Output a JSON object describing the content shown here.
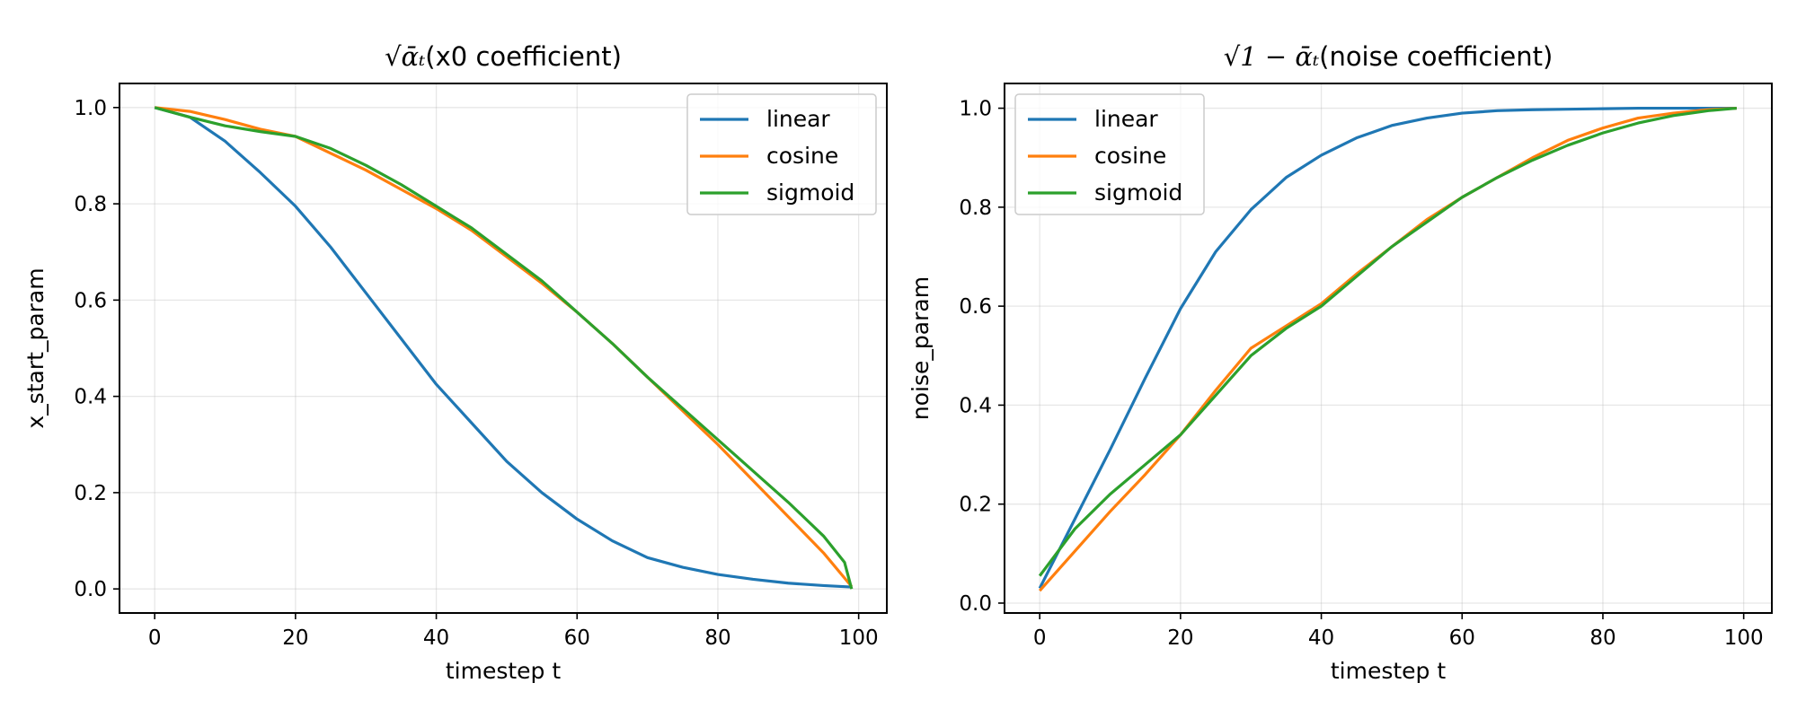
{
  "chart_data": [
    {
      "type": "line",
      "title_math": "√ᾱₜ",
      "title_text": "(x0 coefficient)",
      "xlabel": "timestep t",
      "ylabel": "x_start_param",
      "xlim": [
        -5,
        104
      ],
      "ylim": [
        -0.05,
        1.05
      ],
      "xticks": [
        0,
        20,
        40,
        60,
        80,
        100
      ],
      "yticks": [
        0.0,
        0.2,
        0.4,
        0.6,
        0.8,
        1.0
      ],
      "xtick_labels": [
        "0",
        "20",
        "40",
        "60",
        "80",
        "100"
      ],
      "ytick_labels": [
        "0.0",
        "0.2",
        "0.4",
        "0.6",
        "0.8",
        "1.0"
      ],
      "grid": true,
      "legend": "upper right",
      "series": [
        {
          "name": "linear",
          "color": "#1f77b4",
          "x": [
            0,
            5,
            10,
            15,
            20,
            25,
            30,
            35,
            40,
            45,
            50,
            55,
            60,
            65,
            70,
            75,
            80,
            85,
            90,
            95,
            99
          ],
          "y": [
            1.0,
            0.98,
            0.93,
            0.865,
            0.795,
            0.71,
            0.615,
            0.52,
            0.425,
            0.345,
            0.265,
            0.2,
            0.145,
            0.1,
            0.065,
            0.045,
            0.03,
            0.02,
            0.012,
            0.007,
            0.004
          ]
        },
        {
          "name": "cosine",
          "color": "#ff7f0e",
          "x": [
            0,
            5,
            10,
            15,
            20,
            25,
            30,
            35,
            40,
            45,
            50,
            55,
            60,
            65,
            70,
            75,
            80,
            85,
            90,
            95,
            99
          ],
          "y": [
            1.0,
            0.992,
            0.975,
            0.955,
            0.94,
            0.905,
            0.87,
            0.83,
            0.79,
            0.745,
            0.69,
            0.635,
            0.575,
            0.51,
            0.44,
            0.37,
            0.3,
            0.225,
            0.15,
            0.075,
            0.005
          ]
        },
        {
          "name": "sigmoid",
          "color": "#2ca02c",
          "x": [
            0,
            5,
            10,
            15,
            20,
            25,
            30,
            35,
            40,
            45,
            50,
            55,
            60,
            65,
            70,
            75,
            80,
            85,
            90,
            95,
            98,
            99
          ],
          "y": [
            1.0,
            0.98,
            0.962,
            0.95,
            0.94,
            0.915,
            0.88,
            0.84,
            0.795,
            0.75,
            0.695,
            0.64,
            0.575,
            0.51,
            0.44,
            0.375,
            0.31,
            0.245,
            0.18,
            0.11,
            0.055,
            0.0
          ]
        }
      ]
    },
    {
      "type": "line",
      "title_math": "√1 − ᾱₜ",
      "title_text": "(noise coefficient)",
      "xlabel": "timestep t",
      "ylabel": "noise_param",
      "xlim": [
        -5,
        104
      ],
      "ylim": [
        -0.02,
        1.05
      ],
      "xticks": [
        0,
        20,
        40,
        60,
        80,
        100
      ],
      "yticks": [
        0.0,
        0.2,
        0.4,
        0.6,
        0.8,
        1.0
      ],
      "xtick_labels": [
        "0",
        "20",
        "40",
        "60",
        "80",
        "100"
      ],
      "ytick_labels": [
        "0.0",
        "0.2",
        "0.4",
        "0.6",
        "0.8",
        "1.0"
      ],
      "grid": true,
      "legend": "upper left",
      "series": [
        {
          "name": "linear",
          "color": "#1f77b4",
          "x": [
            0,
            5,
            10,
            15,
            20,
            25,
            30,
            35,
            40,
            45,
            50,
            55,
            60,
            65,
            70,
            75,
            80,
            85,
            90,
            95,
            99
          ],
          "y": [
            0.03,
            0.17,
            0.31,
            0.455,
            0.595,
            0.71,
            0.795,
            0.86,
            0.905,
            0.94,
            0.965,
            0.98,
            0.99,
            0.995,
            0.997,
            0.998,
            0.999,
            1.0,
            1.0,
            1.0,
            1.0
          ]
        },
        {
          "name": "cosine",
          "color": "#ff7f0e",
          "x": [
            0,
            5,
            10,
            15,
            20,
            25,
            30,
            35,
            40,
            45,
            50,
            55,
            60,
            65,
            70,
            75,
            80,
            85,
            90,
            95,
            99
          ],
          "y": [
            0.025,
            0.105,
            0.185,
            0.26,
            0.34,
            0.43,
            0.515,
            0.56,
            0.605,
            0.665,
            0.72,
            0.775,
            0.82,
            0.86,
            0.9,
            0.935,
            0.96,
            0.98,
            0.99,
            0.997,
            1.0
          ]
        },
        {
          "name": "sigmoid",
          "color": "#2ca02c",
          "x": [
            0,
            5,
            10,
            15,
            20,
            25,
            30,
            35,
            40,
            45,
            50,
            55,
            60,
            65,
            70,
            75,
            80,
            85,
            90,
            95,
            99
          ],
          "y": [
            0.055,
            0.15,
            0.22,
            0.28,
            0.34,
            0.42,
            0.5,
            0.555,
            0.6,
            0.66,
            0.72,
            0.77,
            0.82,
            0.86,
            0.895,
            0.925,
            0.95,
            0.97,
            0.985,
            0.995,
            1.0
          ]
        }
      ]
    }
  ]
}
